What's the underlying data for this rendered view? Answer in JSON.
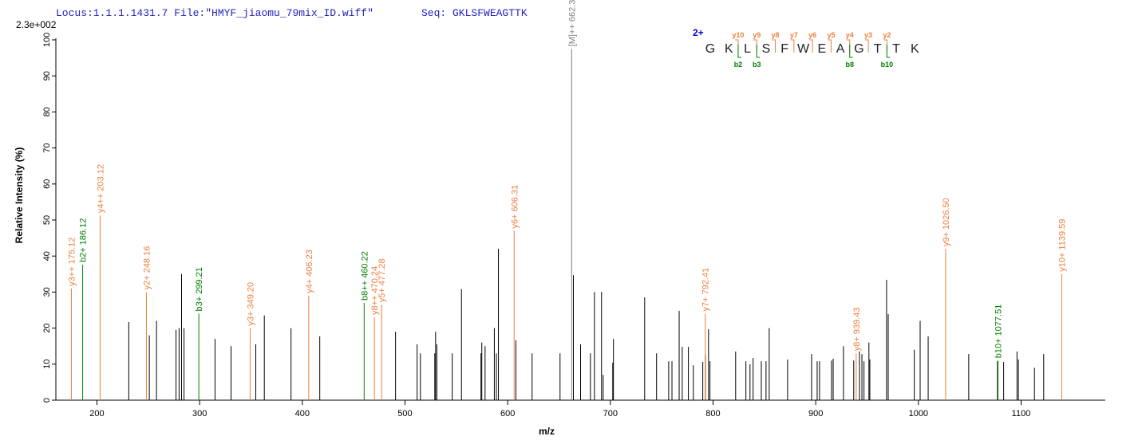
{
  "chart_data": {
    "type": "spectrum",
    "header": "Locus:1.1.1.1431.7 File:\"HMYF_jiaomu_79mix_ID.wiff\"",
    "sequence_label": "Seq: GKLSFWEAGTTK",
    "scale_label": "2.3e+002",
    "ylabel": "Relative   Intensity (%)",
    "xlabel": "m/z",
    "xlim": [
      160,
      1182
    ],
    "ylim": [
      0,
      100
    ],
    "xticks": [
      200,
      300,
      400,
      500,
      600,
      700,
      800,
      900,
      1000,
      1100
    ],
    "yticks": [
      0,
      10,
      20,
      30,
      40,
      50,
      60,
      70,
      80,
      90,
      100
    ],
    "peaks": {
      "color": "#000000",
      "x": [
        231,
        251,
        258,
        277,
        280,
        282.4,
        284.8,
        315,
        330.6,
        354.7,
        363,
        389,
        417,
        490.8,
        511.8,
        515,
        529,
        529.8,
        531,
        546,
        555,
        574,
        574.8,
        578,
        587,
        589,
        591,
        608,
        623.8,
        651,
        664,
        671,
        680.6,
        684.5,
        691.4,
        693,
        702.3,
        703,
        733.4,
        745,
        756.8,
        760,
        767,
        770,
        776,
        780.8,
        790,
        792.5,
        795.6,
        797,
        822,
        832,
        836,
        839,
        847,
        851.6,
        854.7,
        872.6,
        896,
        901.4,
        903.7,
        915.4,
        917,
        927,
        937,
        942.6,
        945,
        947,
        951.8,
        952.7,
        969,
        970.6,
        996,
        1001.7,
        1009.5,
        1049,
        1077,
        1083,
        1096,
        1097.4,
        1113,
        1122
      ],
      "values": [
        21.7,
        18,
        22,
        19.5,
        20,
        35,
        20,
        17,
        15,
        15.5,
        23.5,
        20,
        17.7,
        19,
        15.5,
        13,
        13,
        19,
        15.5,
        13,
        30.8,
        13,
        16,
        15,
        20,
        13,
        42,
        16.6,
        13,
        13,
        34.7,
        15.5,
        13,
        30,
        30,
        7,
        10.4,
        17,
        28.5,
        13,
        10.8,
        10.8,
        24.8,
        14.8,
        14.8,
        9.7,
        10.6,
        12.6,
        19.7,
        10.8,
        13.5,
        10.8,
        10,
        11.7,
        10.8,
        10.8,
        20,
        11.3,
        12.8,
        10.8,
        10.8,
        11,
        11.5,
        15,
        11,
        13.5,
        12.8,
        10.8,
        16,
        11.3,
        33.4,
        23.9,
        14,
        22,
        17.7,
        12.8,
        10.8,
        10.6,
        13.5,
        11.3,
        9,
        12.8
      ]
    },
    "series": [
      {
        "color": "#f07f3c",
        "x": [
          175.12,
          203.12,
          248.16,
          349.2,
          406.23,
          470.24,
          477.28,
          606.31,
          792.41,
          939.43,
          1026.5,
          1139.59
        ],
        "values": [
          31,
          51.3,
          30,
          20,
          29,
          23,
          26.5,
          47,
          24,
          13,
          42,
          35
        ],
        "labels": [
          "y3++ 175.12",
          "y4++ 203.12",
          "y2+ 248.16",
          "y3+ 349.20",
          "y4+ 406.23",
          "y8++ 470.24",
          "y5+ 477.28",
          "y6+ 606.31",
          "y7+ 792.41",
          "y8+ 939.43",
          "y9+ 1026.50",
          "y10+ 1139.59"
        ]
      },
      {
        "color": "#008000",
        "x": [
          186.12,
          299.21,
          460.22,
          1077.51
        ],
        "values": [
          37.6,
          24,
          27,
          11
        ],
        "labels": [
          "b2+ 186.12",
          "b3+ 299.21",
          "b8++ 460.22",
          "b10+ 1077.51"
        ]
      },
      {
        "color": "#808080",
        "x": [
          662.3
        ],
        "values": [
          97.5
        ],
        "labels": [
          "[M]++ 662.3"
        ]
      }
    ],
    "peptide": {
      "charge": "2+",
      "residues": [
        "G",
        "K",
        "L",
        "S",
        "F",
        "W",
        "E",
        "A",
        "G",
        "T",
        "T",
        "K"
      ],
      "y_ions": [
        "y10",
        "y9",
        "y8",
        "y7",
        "y6",
        "y5",
        "y4",
        "y3",
        "y2"
      ],
      "b_ions": [
        "b2",
        "b3",
        "b8",
        "b10"
      ]
    }
  }
}
